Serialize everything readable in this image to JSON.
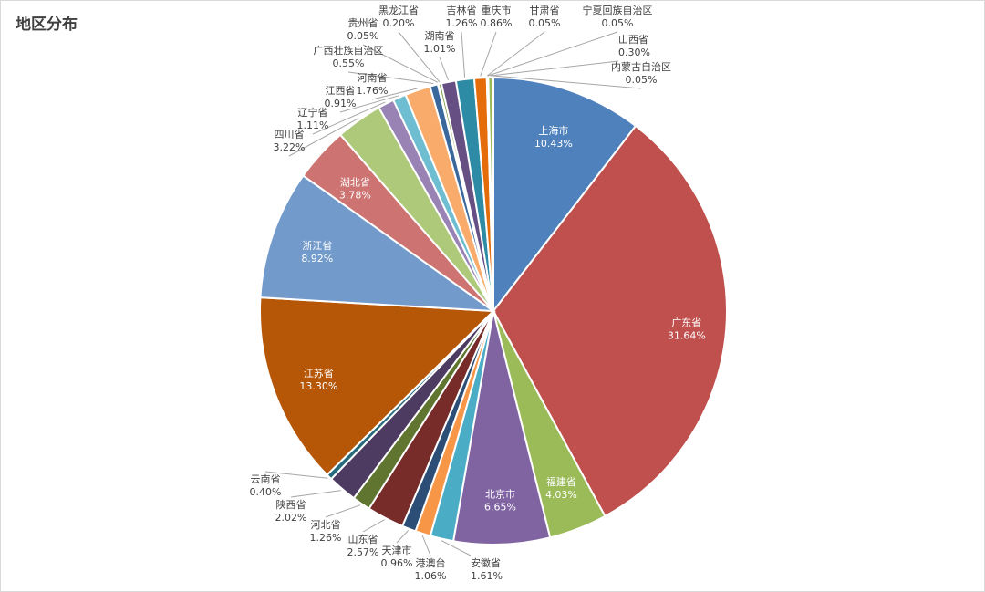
{
  "chart_data": {
    "type": "pie",
    "title": "地区分布",
    "slices": [
      {
        "label": "上海市",
        "value": 10.43,
        "percent": "10.43%",
        "color": "#4f81bd",
        "inside": true
      },
      {
        "label": "广东省",
        "value": 31.64,
        "percent": "31.64%",
        "color": "#c0504d",
        "inside": true
      },
      {
        "label": "福建省",
        "value": 4.03,
        "percent": "4.03%",
        "color": "#9bbb59",
        "inside": true
      },
      {
        "label": "北京市",
        "value": 6.65,
        "percent": "6.65%",
        "color": "#8064a2",
        "inside": true
      },
      {
        "label": "安徽省",
        "value": 1.61,
        "percent": "1.61%",
        "color": "#4bacc6",
        "inside": false
      },
      {
        "label": "港澳台",
        "value": 1.06,
        "percent": "1.06%",
        "color": "#f79646",
        "inside": false
      },
      {
        "label": "天津市",
        "value": 0.96,
        "percent": "0.96%",
        "color": "#2c4d75",
        "inside": false
      },
      {
        "label": "山东省",
        "value": 2.57,
        "percent": "2.57%",
        "color": "#772c2a",
        "inside": false
      },
      {
        "label": "河北省",
        "value": 1.26,
        "percent": "1.26%",
        "color": "#5f7530",
        "inside": false
      },
      {
        "label": "陕西省",
        "value": 2.02,
        "percent": "2.02%",
        "color": "#4d3b62",
        "inside": false
      },
      {
        "label": "云南省",
        "value": 0.4,
        "percent": "0.40%",
        "color": "#276a7c",
        "inside": false
      },
      {
        "label": "江苏省",
        "value": 13.3,
        "percent": "13.30%",
        "color": "#b65708",
        "inside": true
      },
      {
        "label": "浙江省",
        "value": 8.92,
        "percent": "8.92%",
        "color": "#729aca",
        "inside": true
      },
      {
        "label": "湖北省",
        "value": 3.78,
        "percent": "3.78%",
        "color": "#cd7371",
        "inside": true
      },
      {
        "label": "四川省",
        "value": 3.22,
        "percent": "3.22%",
        "color": "#afc97a",
        "inside": false
      },
      {
        "label": "辽宁省",
        "value": 1.11,
        "percent": "1.11%",
        "color": "#9983b5",
        "inside": false
      },
      {
        "label": "江西省",
        "value": 0.91,
        "percent": "0.91%",
        "color": "#6fbdd1",
        "inside": false
      },
      {
        "label": "河南省",
        "value": 1.76,
        "percent": "1.76%",
        "color": "#f9ab6b",
        "inside": false
      },
      {
        "label": "广西壮族自治区",
        "value": 0.55,
        "percent": "0.55%",
        "color": "#3a679c",
        "inside": false
      },
      {
        "label": "贵州省",
        "value": 0.05,
        "percent": "0.05%",
        "color": "#9e3b38",
        "inside": false
      },
      {
        "label": "黑龙江省",
        "value": 0.2,
        "percent": "0.20%",
        "color": "#7e9d40",
        "inside": false
      },
      {
        "label": "湖南省",
        "value": 1.01,
        "percent": "1.01%",
        "color": "#664f83",
        "inside": false
      },
      {
        "label": "吉林省",
        "value": 1.26,
        "percent": "1.26%",
        "color": "#2e8ba5",
        "inside": false
      },
      {
        "label": "重庆市",
        "value": 0.86,
        "percent": "0.86%",
        "color": "#e46c0a",
        "inside": false
      },
      {
        "label": "甘肃省",
        "value": 0.05,
        "percent": "0.05%",
        "color": "#4f81bd",
        "inside": false
      },
      {
        "label": "宁夏回族自治区",
        "value": 0.05,
        "percent": "0.05%",
        "color": "#c0504d",
        "inside": false
      },
      {
        "label": "山西省",
        "value": 0.3,
        "percent": "0.30%",
        "color": "#9bbb59",
        "inside": false
      },
      {
        "label": "内蒙古自治区",
        "value": 0.05,
        "percent": "0.05%",
        "color": "#8064a2",
        "inside": false
      }
    ]
  }
}
